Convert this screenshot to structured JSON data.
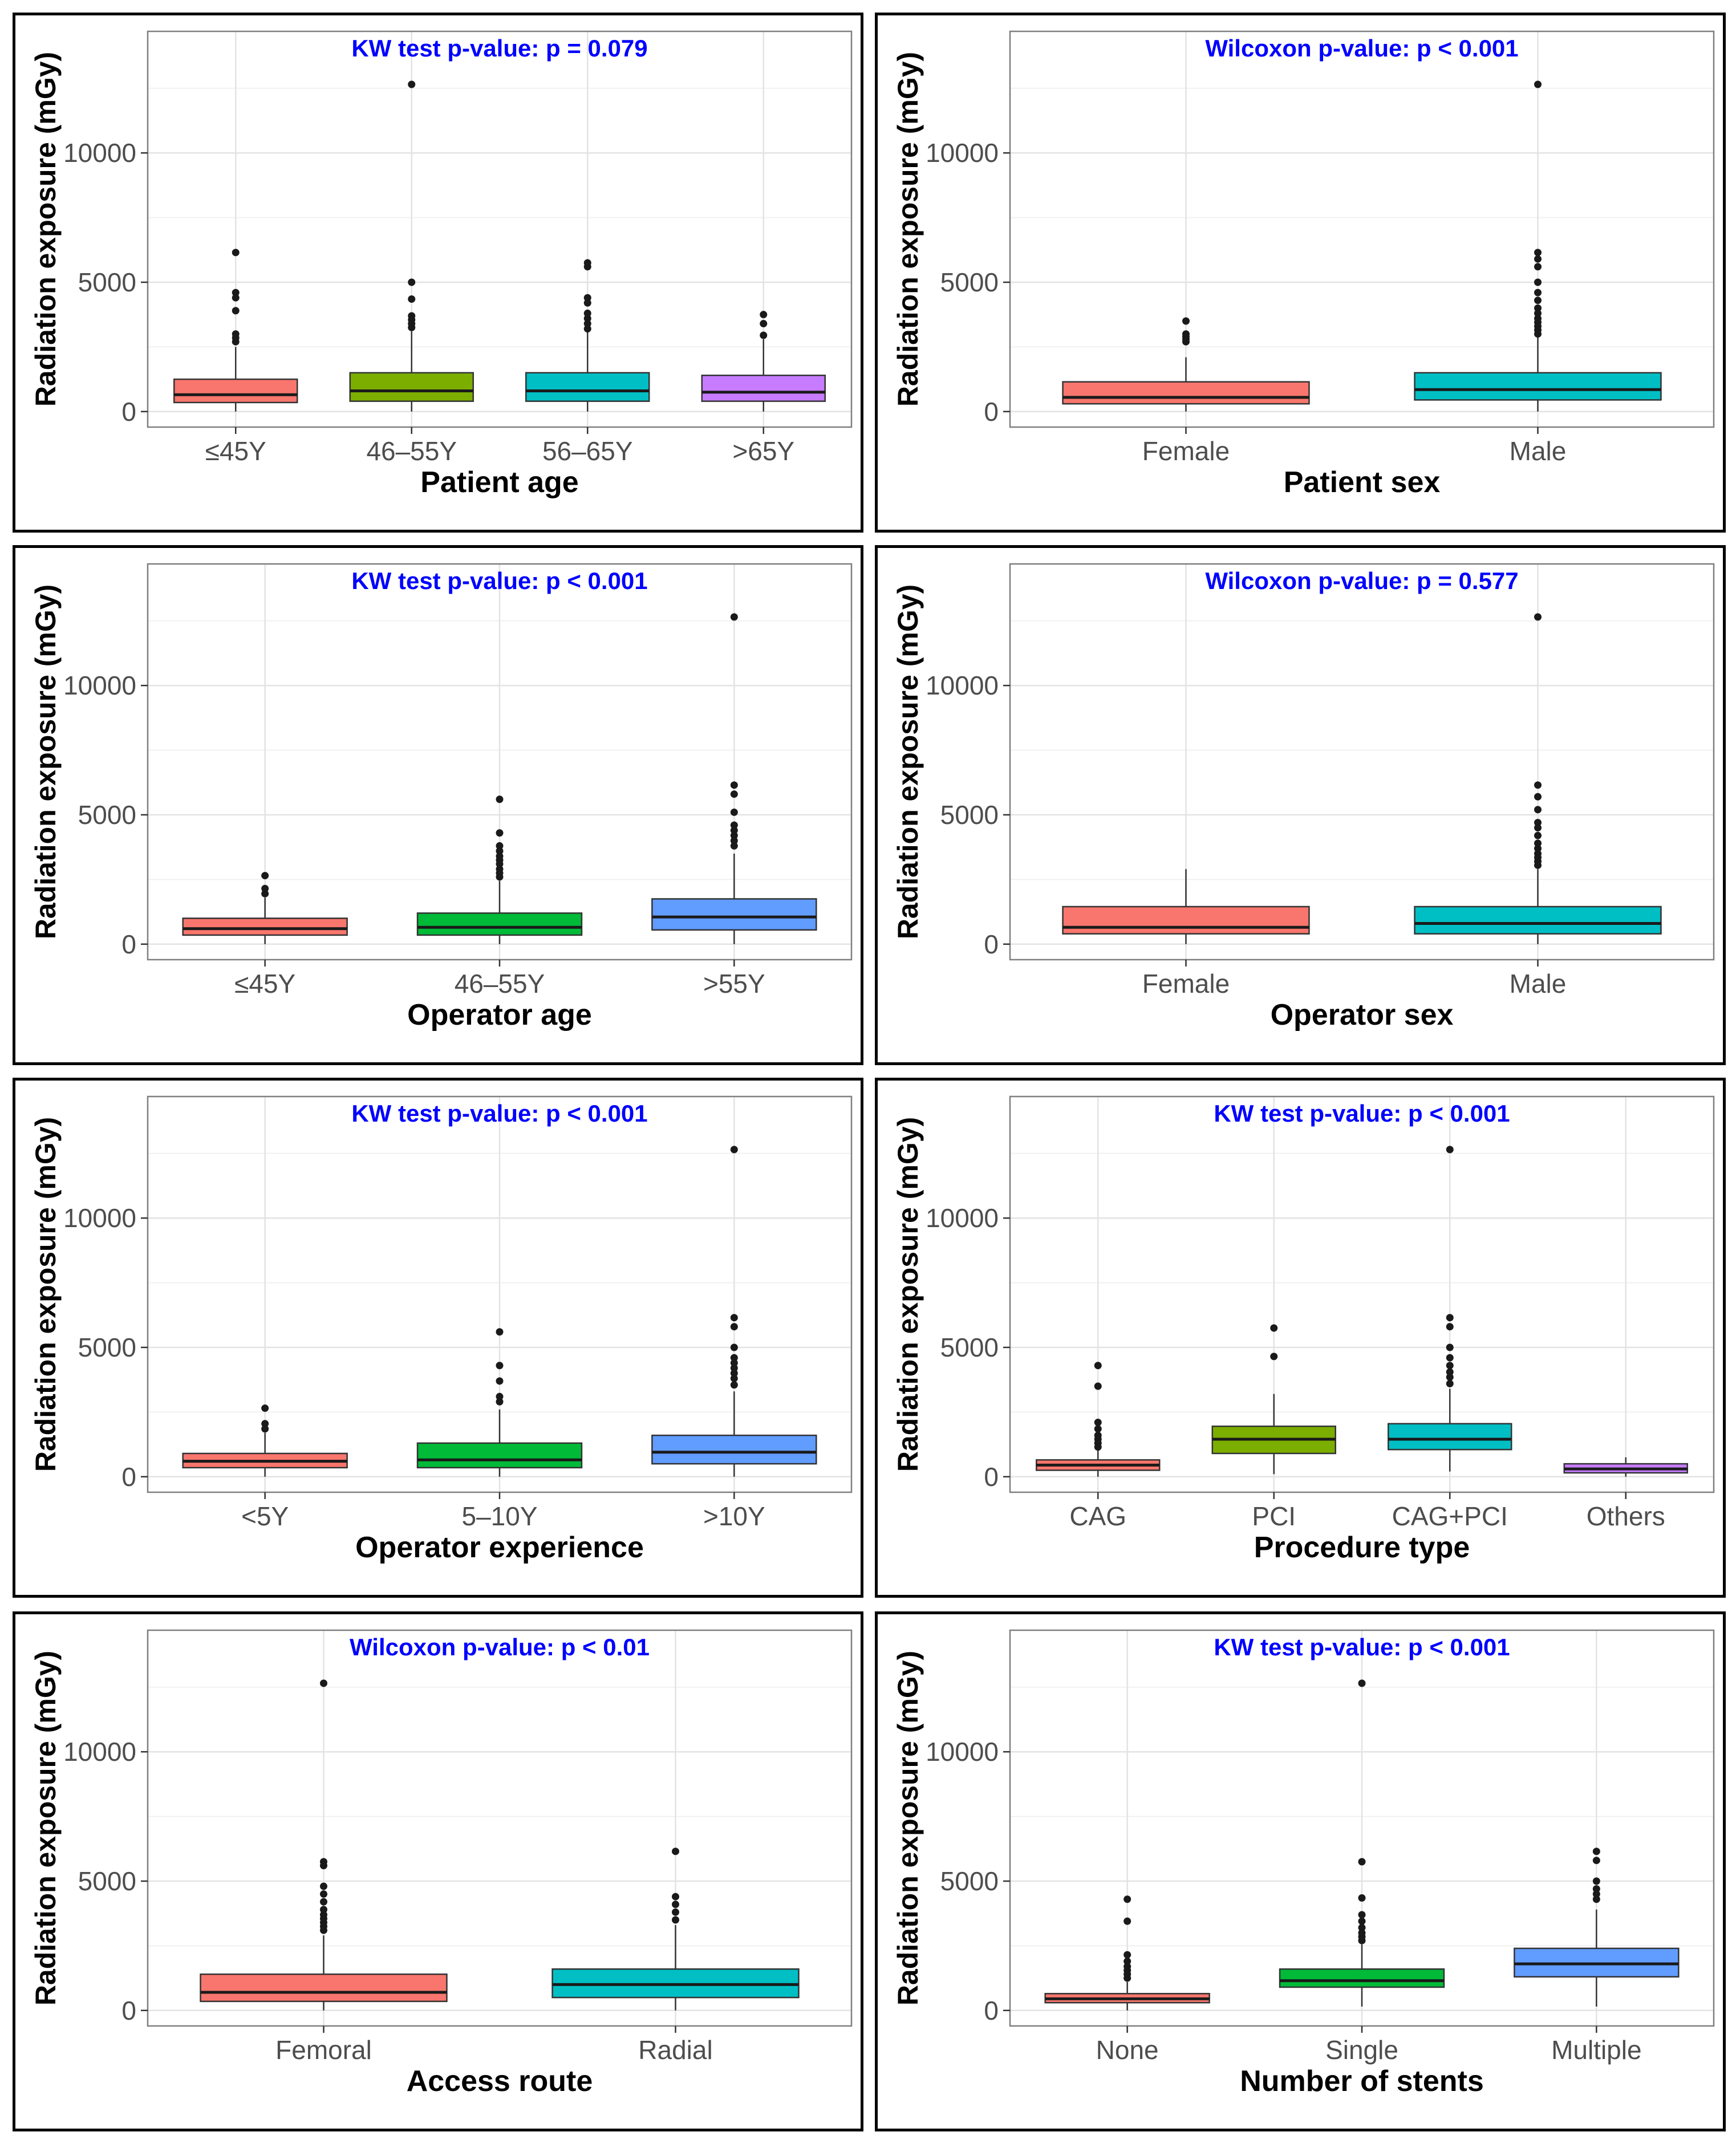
{
  "colors": {
    "red": "#F8766D",
    "olive": "#7CAE00",
    "teal": "#00BFC4",
    "violet": "#C77CFF",
    "green": "#00BA38",
    "blue": "#619CFF",
    "title_blue": "#0000FF"
  },
  "chart_data": [
    {
      "type": "box",
      "title": "KW test p-value: p = 0.079",
      "xlabel": "Patient age",
      "ylabel": "Radiation exposure (mGy)",
      "ylim": [
        -600,
        14700
      ],
      "yticks": [
        0,
        5000,
        10000
      ],
      "ytick_labels": [
        "0",
        "5000",
        "10000"
      ],
      "grid": true,
      "categories": [
        "≤45Y",
        "46–55Y",
        "56–65Y",
        ">65Y"
      ],
      "colors": [
        "#F8766D",
        "#7CAE00",
        "#00BFC4",
        "#C77CFF"
      ],
      "boxes": [
        {
          "q1": 350,
          "median": 650,
          "q3": 1250,
          "whisker_low": 0,
          "whisker_high": 2500,
          "outliers": [
            2700,
            2850,
            3000,
            3900,
            4400,
            4600,
            6150
          ]
        },
        {
          "q1": 400,
          "median": 800,
          "q3": 1500,
          "whisker_low": 0,
          "whisker_high": 3100,
          "outliers": [
            3250,
            3400,
            3550,
            3700,
            4350,
            5000,
            12650
          ]
        },
        {
          "q1": 400,
          "median": 800,
          "q3": 1500,
          "whisker_low": 0,
          "whisker_high": 3100,
          "outliers": [
            3200,
            3400,
            3600,
            3800,
            4200,
            4400,
            5600,
            5750
          ]
        },
        {
          "q1": 400,
          "median": 750,
          "q3": 1400,
          "whisker_low": 0,
          "whisker_high": 2800,
          "outliers": [
            2950,
            3400,
            3750
          ]
        }
      ]
    },
    {
      "type": "box",
      "title": "Wilcoxon p-value: p < 0.001",
      "xlabel": "Patient sex",
      "ylabel": "Radiation exposure (mGy)",
      "ylim": [
        -600,
        14700
      ],
      "yticks": [
        0,
        5000,
        10000
      ],
      "ytick_labels": [
        "0",
        "5000",
        "10000"
      ],
      "grid": true,
      "categories": [
        "Female",
        "Male"
      ],
      "colors": [
        "#F8766D",
        "#00BFC4"
      ],
      "boxes": [
        {
          "q1": 300,
          "median": 550,
          "q3": 1150,
          "whisker_low": 0,
          "whisker_high": 2100,
          "outliers": [
            2700,
            2800,
            2900,
            3000,
            3500
          ]
        },
        {
          "q1": 450,
          "median": 850,
          "q3": 1500,
          "whisker_low": 0,
          "whisker_high": 2900,
          "outliers": [
            3000,
            3150,
            3300,
            3450,
            3600,
            3800,
            4000,
            4300,
            4600,
            5000,
            5600,
            5900,
            6150,
            12650
          ]
        }
      ]
    },
    {
      "type": "box",
      "title": "KW test p-value: p < 0.001",
      "xlabel": "Operator age",
      "ylabel": "Radiation exposure (mGy)",
      "ylim": [
        -600,
        14700
      ],
      "yticks": [
        0,
        5000,
        10000
      ],
      "ytick_labels": [
        "0",
        "5000",
        "10000"
      ],
      "grid": true,
      "categories": [
        "≤45Y",
        "46–55Y",
        ">55Y"
      ],
      "colors": [
        "#F8766D",
        "#00BA38",
        "#619CFF"
      ],
      "boxes": [
        {
          "q1": 350,
          "median": 600,
          "q3": 1000,
          "whisker_low": 0,
          "whisker_high": 1800,
          "outliers": [
            1950,
            2150,
            2650
          ]
        },
        {
          "q1": 350,
          "median": 650,
          "q3": 1200,
          "whisker_low": 0,
          "whisker_high": 2450,
          "outliers": [
            2600,
            2750,
            2900,
            3100,
            3250,
            3400,
            3600,
            3800,
            4300,
            5600
          ]
        },
        {
          "q1": 550,
          "median": 1050,
          "q3": 1750,
          "whisker_low": 0,
          "whisker_high": 3500,
          "outliers": [
            3800,
            4000,
            4200,
            4400,
            4600,
            5100,
            5800,
            6150,
            12650
          ]
        }
      ]
    },
    {
      "type": "box",
      "title": "Wilcoxon p-value: p = 0.577",
      "xlabel": "Operator sex",
      "ylabel": "Radiation exposure (mGy)",
      "ylim": [
        -600,
        14700
      ],
      "yticks": [
        0,
        5000,
        10000
      ],
      "ytick_labels": [
        "0",
        "5000",
        "10000"
      ],
      "grid": true,
      "categories": [
        "Female",
        "Male"
      ],
      "colors": [
        "#F8766D",
        "#00BFC4"
      ],
      "boxes": [
        {
          "q1": 400,
          "median": 650,
          "q3": 1450,
          "whisker_low": 0,
          "whisker_high": 2900,
          "outliers": []
        },
        {
          "q1": 400,
          "median": 800,
          "q3": 1450,
          "whisker_low": 0,
          "whisker_high": 2900,
          "outliers": [
            3050,
            3200,
            3350,
            3500,
            3700,
            3900,
            4200,
            4500,
            4700,
            5200,
            5700,
            6150,
            12650
          ]
        }
      ]
    },
    {
      "type": "box",
      "title": "KW test p-value: p < 0.001",
      "xlabel": "Operator experience",
      "ylabel": "Radiation exposure (mGy)",
      "ylim": [
        -600,
        14700
      ],
      "yticks": [
        0,
        5000,
        10000
      ],
      "ytick_labels": [
        "0",
        "5000",
        "10000"
      ],
      "grid": true,
      "categories": [
        "<5Y",
        "5–10Y",
        ">10Y"
      ],
      "colors": [
        "#F8766D",
        "#00BA38",
        "#619CFF"
      ],
      "boxes": [
        {
          "q1": 350,
          "median": 600,
          "q3": 900,
          "whisker_low": 0,
          "whisker_high": 1700,
          "outliers": [
            1850,
            2050,
            2650
          ]
        },
        {
          "q1": 350,
          "median": 650,
          "q3": 1300,
          "whisker_low": 0,
          "whisker_high": 2600,
          "outliers": [
            2900,
            3100,
            3700,
            4300,
            5600
          ]
        },
        {
          "q1": 500,
          "median": 950,
          "q3": 1600,
          "whisker_low": 0,
          "whisker_high": 3300,
          "outliers": [
            3550,
            3800,
            4000,
            4200,
            4400,
            4600,
            5000,
            5800,
            6150,
            12650
          ]
        }
      ]
    },
    {
      "type": "box",
      "title": "KW test p-value: p < 0.001",
      "xlabel": "Procedure type",
      "ylabel": "Radiation exposure (mGy)",
      "ylim": [
        -600,
        14700
      ],
      "yticks": [
        0,
        5000,
        10000
      ],
      "ytick_labels": [
        "0",
        "5000",
        "10000"
      ],
      "grid": true,
      "categories": [
        "CAG",
        "PCI",
        "CAG+PCI",
        "Others"
      ],
      "colors": [
        "#F8766D",
        "#7CAE00",
        "#00BFC4",
        "#C77CFF"
      ],
      "boxes": [
        {
          "q1": 250,
          "median": 450,
          "q3": 650,
          "whisker_low": 0,
          "whisker_high": 1050,
          "outliers": [
            1150,
            1300,
            1450,
            1600,
            1850,
            2100,
            3500,
            4300
          ]
        },
        {
          "q1": 900,
          "median": 1450,
          "q3": 1950,
          "whisker_low": 100,
          "whisker_high": 3200,
          "outliers": [
            4650,
            5750
          ]
        },
        {
          "q1": 1050,
          "median": 1450,
          "q3": 2050,
          "whisker_low": 200,
          "whisker_high": 3400,
          "outliers": [
            3600,
            3850,
            4050,
            4300,
            4600,
            5000,
            5800,
            6150,
            12650
          ]
        },
        {
          "q1": 150,
          "median": 300,
          "q3": 500,
          "whisker_low": 0,
          "whisker_high": 750,
          "outliers": []
        }
      ]
    },
    {
      "type": "box",
      "title": "Wilcoxon p-value: p < 0.01",
      "xlabel": "Access route",
      "ylabel": "Radiation exposure (mGy)",
      "ylim": [
        -600,
        14700
      ],
      "yticks": [
        0,
        5000,
        10000
      ],
      "ytick_labels": [
        "0",
        "5000",
        "10000"
      ],
      "grid": true,
      "categories": [
        "Femoral",
        "Radial"
      ],
      "colors": [
        "#F8766D",
        "#00BFC4"
      ],
      "boxes": [
        {
          "q1": 350,
          "median": 700,
          "q3": 1400,
          "whisker_low": 0,
          "whisker_high": 2900,
          "outliers": [
            3100,
            3250,
            3400,
            3550,
            3700,
            3900,
            4200,
            4500,
            4800,
            5600,
            5750,
            12650
          ]
        },
        {
          "q1": 500,
          "median": 1000,
          "q3": 1600,
          "whisker_low": 0,
          "whisker_high": 3300,
          "outliers": [
            3500,
            3800,
            4100,
            4400,
            6150
          ]
        }
      ]
    },
    {
      "type": "box",
      "title": "KW test p-value: p < 0.001",
      "xlabel": "Number of stents",
      "ylabel": "Radiation exposure (mGy)",
      "ylim": [
        -600,
        14700
      ],
      "yticks": [
        0,
        5000,
        10000
      ],
      "ytick_labels": [
        "0",
        "5000",
        "10000"
      ],
      "grid": true,
      "categories": [
        "None",
        "Single",
        "Multiple"
      ],
      "colors": [
        "#F8766D",
        "#00BA38",
        "#619CFF"
      ],
      "boxes": [
        {
          "q1": 300,
          "median": 450,
          "q3": 650,
          "whisker_low": 0,
          "whisker_high": 1100,
          "outliers": [
            1250,
            1400,
            1550,
            1700,
            1900,
            2150,
            3450,
            4300
          ]
        },
        {
          "q1": 900,
          "median": 1150,
          "q3": 1600,
          "whisker_low": 150,
          "whisker_high": 2550,
          "outliers": [
            2700,
            2850,
            3000,
            3200,
            3450,
            3700,
            4350,
            5750,
            12650
          ]
        },
        {
          "q1": 1300,
          "median": 1800,
          "q3": 2400,
          "whisker_low": 150,
          "whisker_high": 3900,
          "outliers": [
            4300,
            4500,
            4700,
            5000,
            5800,
            6150
          ]
        }
      ]
    }
  ]
}
